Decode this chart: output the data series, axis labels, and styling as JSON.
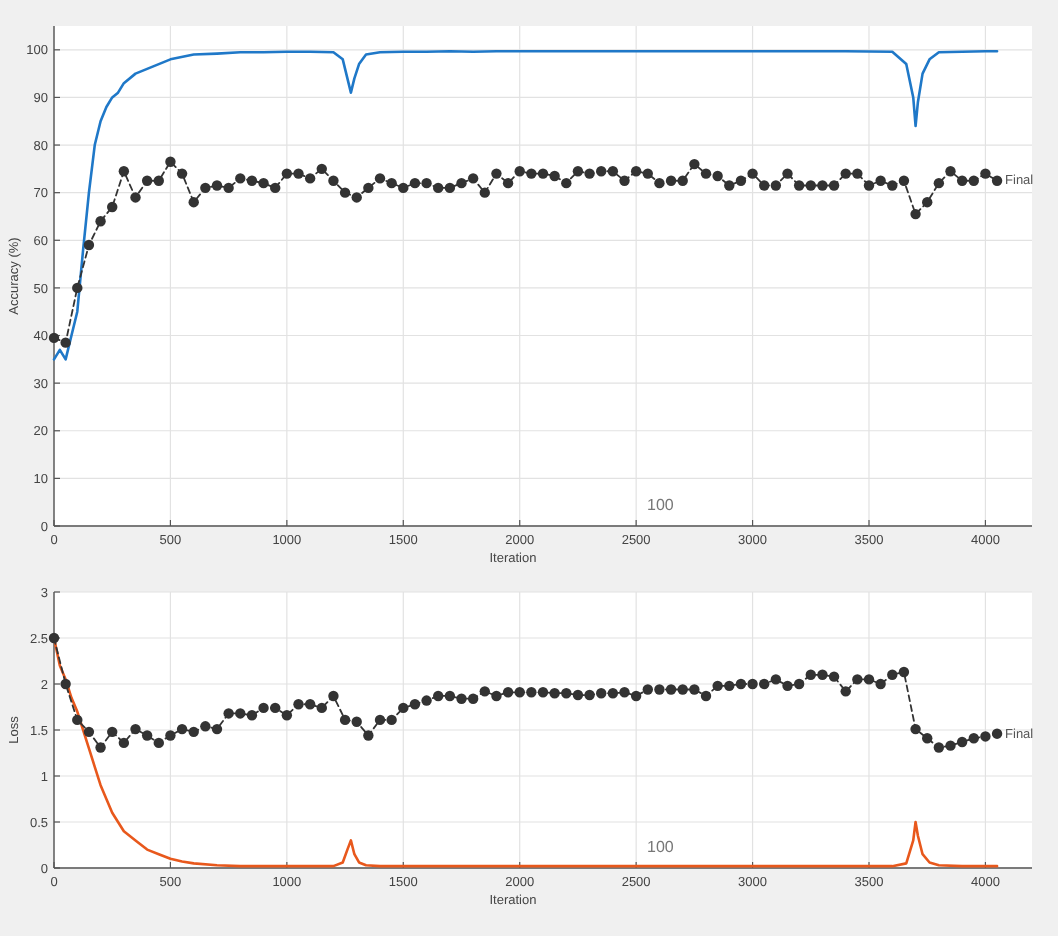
{
  "chart_data": [
    {
      "type": "line",
      "xlabel": "Iteration",
      "ylabel": "Accuracy (%)",
      "xlim": [
        0,
        4200
      ],
      "ylim": [
        0,
        105
      ],
      "xticks": [
        0,
        500,
        1000,
        1500,
        2000,
        2500,
        3000,
        3500,
        4000
      ],
      "yticks": [
        0,
        10,
        20,
        30,
        40,
        50,
        60,
        70,
        80,
        90,
        100
      ],
      "grid": true,
      "annotations": [
        "100",
        {
          "text": "Final",
          "x": 4050,
          "y": 72.7
        }
      ],
      "series": [
        {
          "color": "#1f78c8",
          "marker": "none",
          "line_style": "solid",
          "x": [
            0,
            25,
            50,
            75,
            100,
            125,
            150,
            175,
            200,
            225,
            250,
            275,
            300,
            350,
            400,
            450,
            500,
            600,
            700,
            800,
            900,
            1000,
            1100,
            1200,
            1240,
            1260,
            1275,
            1290,
            1310,
            1340,
            1400,
            1500,
            1600,
            1700,
            1800,
            1900,
            2000,
            2200,
            2400,
            2600,
            2800,
            3000,
            3200,
            3400,
            3600,
            3660,
            3690,
            3700,
            3710,
            3730,
            3760,
            3800,
            3900,
            4000,
            4050
          ],
          "values": [
            35,
            37,
            35,
            40,
            45,
            58,
            70,
            80,
            85,
            88,
            90,
            91,
            93,
            95,
            96,
            97,
            98,
            99,
            99.2,
            99.5,
            99.5,
            99.6,
            99.6,
            99.5,
            98,
            94,
            91,
            94,
            97,
            99,
            99.5,
            99.6,
            99.6,
            99.7,
            99.6,
            99.7,
            99.7,
            99.7,
            99.7,
            99.7,
            99.7,
            99.7,
            99.7,
            99.7,
            99.6,
            97,
            90,
            84,
            89,
            95,
            98,
            99.5,
            99.6,
            99.7,
            99.7
          ]
        },
        {
          "color": "#333333",
          "marker": "circle",
          "line_style": "dashed",
          "x": [
            0,
            50,
            100,
            150,
            200,
            250,
            300,
            350,
            400,
            450,
            500,
            550,
            600,
            650,
            700,
            750,
            800,
            850,
            900,
            950,
            1000,
            1050,
            1100,
            1150,
            1200,
            1250,
            1300,
            1350,
            1400,
            1450,
            1500,
            1550,
            1600,
            1650,
            1700,
            1750,
            1800,
            1850,
            1900,
            1950,
            2000,
            2050,
            2100,
            2150,
            2200,
            2250,
            2300,
            2350,
            2400,
            2450,
            2500,
            2550,
            2600,
            2650,
            2700,
            2750,
            2800,
            2850,
            2900,
            2950,
            3000,
            3050,
            3100,
            3150,
            3200,
            3250,
            3300,
            3350,
            3400,
            3450,
            3500,
            3550,
            3600,
            3650,
            3700,
            3750,
            3800,
            3850,
            3900,
            3950,
            4000,
            4050
          ],
          "values": [
            39.5,
            38.5,
            50,
            59,
            64,
            67,
            74.5,
            69,
            72.5,
            72.5,
            76.5,
            74,
            68,
            71,
            71.5,
            71,
            73,
            72.5,
            72,
            71,
            74,
            74,
            73,
            75,
            72.5,
            70,
            69,
            71,
            73,
            72,
            71,
            72,
            72,
            71,
            71,
            72,
            73,
            70,
            74,
            72,
            74.5,
            74,
            74,
            73.5,
            72,
            74.5,
            74,
            74.5,
            74.5,
            72.5,
            74.5,
            74,
            72,
            72.5,
            72.5,
            76,
            74,
            73.5,
            71.5,
            72.5,
            74,
            71.5,
            71.5,
            74,
            71.5,
            71.5,
            71.5,
            71.5,
            74,
            74,
            71.5,
            72.5,
            71.5,
            72.5,
            65.5,
            68,
            72,
            74.5,
            72.5,
            72.5,
            74,
            72.5
          ]
        }
      ]
    },
    {
      "type": "line",
      "xlabel": "Iteration",
      "ylabel": "Loss",
      "xlim": [
        0,
        4200
      ],
      "ylim": [
        0,
        3
      ],
      "xticks": [
        0,
        500,
        1000,
        1500,
        2000,
        2500,
        3000,
        3500,
        4000
      ],
      "yticks": [
        0,
        0.5,
        1,
        1.5,
        2,
        2.5,
        3
      ],
      "grid": true,
      "annotations": [
        "100",
        {
          "text": "Final",
          "x": 4050,
          "y": 1.46
        }
      ],
      "series": [
        {
          "color": "#e8581c",
          "marker": "none",
          "line_style": "solid",
          "x": [
            0,
            25,
            50,
            75,
            100,
            125,
            150,
            175,
            200,
            225,
            250,
            275,
            300,
            350,
            400,
            450,
            500,
            550,
            600,
            700,
            800,
            900,
            1000,
            1100,
            1200,
            1240,
            1260,
            1275,
            1290,
            1310,
            1340,
            1400,
            1600,
            1800,
            2000,
            2400,
            2800,
            3200,
            3600,
            3660,
            3690,
            3700,
            3710,
            3730,
            3760,
            3800,
            3900,
            4000,
            4050
          ],
          "values": [
            2.5,
            2.2,
            2.05,
            1.85,
            1.7,
            1.5,
            1.3,
            1.1,
            0.9,
            0.75,
            0.6,
            0.5,
            0.4,
            0.3,
            0.2,
            0.15,
            0.1,
            0.07,
            0.05,
            0.03,
            0.02,
            0.02,
            0.02,
            0.02,
            0.02,
            0.06,
            0.2,
            0.3,
            0.15,
            0.06,
            0.03,
            0.02,
            0.02,
            0.02,
            0.02,
            0.02,
            0.02,
            0.02,
            0.02,
            0.05,
            0.3,
            0.5,
            0.35,
            0.15,
            0.06,
            0.03,
            0.02,
            0.02,
            0.02
          ]
        },
        {
          "color": "#333333",
          "marker": "circle",
          "line_style": "dashed",
          "x": [
            0,
            50,
            100,
            150,
            200,
            250,
            300,
            350,
            400,
            450,
            500,
            550,
            600,
            650,
            700,
            750,
            800,
            850,
            900,
            950,
            1000,
            1050,
            1100,
            1150,
            1200,
            1250,
            1300,
            1350,
            1400,
            1450,
            1500,
            1550,
            1600,
            1650,
            1700,
            1750,
            1800,
            1850,
            1900,
            1950,
            2000,
            2050,
            2100,
            2150,
            2200,
            2250,
            2300,
            2350,
            2400,
            2450,
            2500,
            2550,
            2600,
            2650,
            2700,
            2750,
            2800,
            2850,
            2900,
            2950,
            3000,
            3050,
            3100,
            3150,
            3200,
            3250,
            3300,
            3350,
            3400,
            3450,
            3500,
            3550,
            3600,
            3650,
            3700,
            3750,
            3800,
            3850,
            3900,
            3950,
            4000,
            4050
          ],
          "values": [
            2.5,
            2,
            1.61,
            1.48,
            1.31,
            1.48,
            1.36,
            1.51,
            1.44,
            1.36,
            1.44,
            1.51,
            1.48,
            1.54,
            1.51,
            1.68,
            1.68,
            1.66,
            1.74,
            1.74,
            1.66,
            1.78,
            1.78,
            1.74,
            1.87,
            1.61,
            1.59,
            1.44,
            1.61,
            1.61,
            1.74,
            1.78,
            1.82,
            1.87,
            1.87,
            1.84,
            1.84,
            1.92,
            1.87,
            1.91,
            1.91,
            1.91,
            1.91,
            1.9,
            1.9,
            1.88,
            1.88,
            1.9,
            1.9,
            1.91,
            1.87,
            1.94,
            1.94,
            1.94,
            1.94,
            1.94,
            1.87,
            1.98,
            1.98,
            2,
            2,
            2,
            2.05,
            1.98,
            2,
            2.1,
            2.1,
            2.08,
            1.92,
            2.05,
            2.05,
            2,
            2.1,
            2.13,
            1.51,
            1.41,
            1.31,
            1.33,
            1.37,
            1.41,
            1.43,
            1.46
          ]
        }
      ]
    }
  ]
}
